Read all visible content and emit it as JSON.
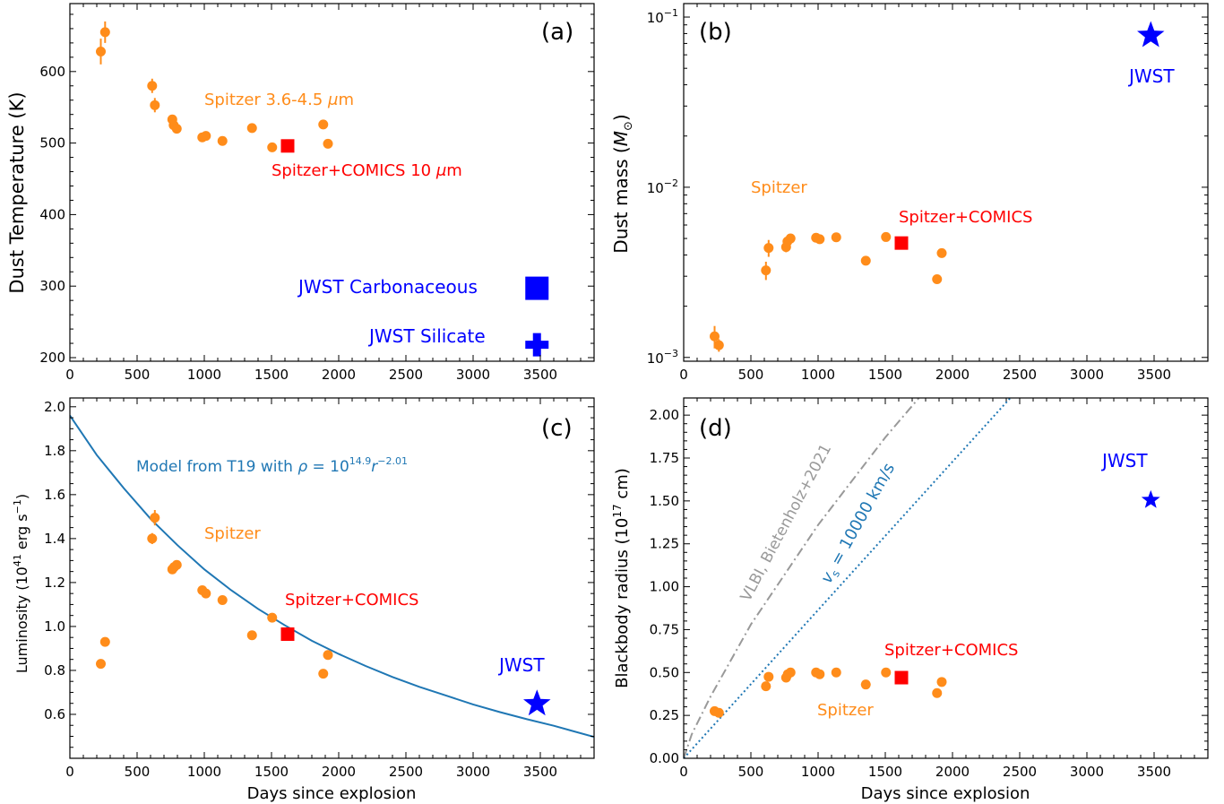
{
  "figure": {
    "xlabel_bottom": "Days since explosion"
  },
  "colors": {
    "spitzer": "#ff8c1a",
    "comics": "#ff0000",
    "jwst": "#0000ff",
    "model": "#1f77b4",
    "vlbi": "#999999",
    "axis": "#000000"
  },
  "chart_data": [
    {
      "panel": "(a)",
      "type": "scatter",
      "xlabel": "",
      "ylabel": "Dust Temperature (K)",
      "xlim": [
        0,
        3900
      ],
      "ylim": [
        195,
        695
      ],
      "xticks": [
        0,
        500,
        1000,
        1500,
        2000,
        2500,
        3000,
        3500
      ],
      "yticks": [
        200,
        300,
        400,
        500,
        600
      ],
      "yscale": "linear",
      "series": [
        {
          "name": "Spitzer 3.6-4.5 μm",
          "marker": "circle",
          "color": "#ff8c1a",
          "points": [
            {
              "x": 230,
              "y": 628,
              "err": 18
            },
            {
              "x": 262,
              "y": 655,
              "err": 15
            },
            {
              "x": 612,
              "y": 580,
              "err": 10
            },
            {
              "x": 632,
              "y": 553,
              "err": 10
            },
            {
              "x": 762,
              "y": 533,
              "err": 0
            },
            {
              "x": 772,
              "y": 525,
              "err": 0
            },
            {
              "x": 795,
              "y": 520,
              "err": 0
            },
            {
              "x": 985,
              "y": 508,
              "err": 0
            },
            {
              "x": 1012,
              "y": 510,
              "err": 0
            },
            {
              "x": 1135,
              "y": 503,
              "err": 0
            },
            {
              "x": 1355,
              "y": 521,
              "err": 0
            },
            {
              "x": 1505,
              "y": 494,
              "err": 0
            },
            {
              "x": 1885,
              "y": 526,
              "err": 0
            },
            {
              "x": 1920,
              "y": 499,
              "err": 0
            }
          ]
        },
        {
          "name": "Spitzer+COMICS 10 μm",
          "marker": "square",
          "color": "#ff0000",
          "points": [
            {
              "x": 1620,
              "y": 496
            }
          ]
        },
        {
          "name": "JWST Carbonaceous",
          "marker": "square",
          "color": "#0000ff",
          "points": [
            {
              "x": 3475,
              "y": 297
            }
          ]
        },
        {
          "name": "JWST Silicate",
          "marker": "plus",
          "color": "#0000ff",
          "points": [
            {
              "x": 3475,
              "y": 218
            }
          ]
        }
      ],
      "annotations": [
        {
          "text": "Spitzer 3.6-4.5 μm",
          "color": "#ff8c1a"
        },
        {
          "text": "Spitzer+COMICS 10 μm",
          "color": "#ff0000"
        },
        {
          "text": "JWST Carbonaceous",
          "color": "#0000ff"
        },
        {
          "text": "JWST Silicate",
          "color": "#0000ff"
        }
      ]
    },
    {
      "panel": "(b)",
      "type": "scatter",
      "xlabel": "",
      "ylabel": "Dust mass (M☉)",
      "xlim": [
        0,
        3900
      ],
      "ylim": [
        0.00095,
        0.12
      ],
      "yscale": "log",
      "xticks": [
        0,
        500,
        1000,
        1500,
        2000,
        2500,
        3000,
        3500
      ],
      "yticks": [
        0.001,
        0.01,
        0.1
      ],
      "ytick_labels": [
        "10^-3",
        "10^-2",
        "10^-1"
      ],
      "series": [
        {
          "name": "Spitzer",
          "marker": "circle",
          "color": "#ff8c1a",
          "points": [
            {
              "x": 230,
              "y": 0.00133,
              "err": 0.0002
            },
            {
              "x": 262,
              "y": 0.00118,
              "err": 0.0001
            },
            {
              "x": 612,
              "y": 0.00325,
              "err": 0.0004
            },
            {
              "x": 632,
              "y": 0.0044,
              "err": 0.0005
            },
            {
              "x": 762,
              "y": 0.00445,
              "err": 0.0003
            },
            {
              "x": 772,
              "y": 0.0048,
              "err": 0
            },
            {
              "x": 795,
              "y": 0.005,
              "err": 0
            },
            {
              "x": 985,
              "y": 0.00505,
              "err": 0
            },
            {
              "x": 1012,
              "y": 0.00495,
              "err": 0
            },
            {
              "x": 1135,
              "y": 0.00508,
              "err": 0
            },
            {
              "x": 1355,
              "y": 0.0037,
              "err": 0
            },
            {
              "x": 1505,
              "y": 0.0051,
              "err": 0
            },
            {
              "x": 1885,
              "y": 0.00288,
              "err": 0
            },
            {
              "x": 1920,
              "y": 0.0041,
              "err": 0
            }
          ]
        },
        {
          "name": "Spitzer+COMICS",
          "marker": "square",
          "color": "#ff0000",
          "points": [
            {
              "x": 1620,
              "y": 0.0047
            }
          ]
        },
        {
          "name": "JWST",
          "marker": "star",
          "color": "#0000ff",
          "points": [
            {
              "x": 3475,
              "y": 0.078
            }
          ]
        }
      ],
      "annotations": [
        {
          "text": "Spitzer",
          "color": "#ff8c1a"
        },
        {
          "text": "Spitzer+COMICS",
          "color": "#ff0000"
        },
        {
          "text": "JWST",
          "color": "#0000ff"
        }
      ]
    },
    {
      "panel": "(c)",
      "type": "scatter",
      "xlabel": "Days since explosion",
      "ylabel": "Luminosity (10^41 erg s^-1)",
      "xlim": [
        0,
        3900
      ],
      "ylim": [
        0.4,
        2.04
      ],
      "yscale": "linear",
      "xticks": [
        0,
        500,
        1000,
        1500,
        2000,
        2500,
        3000,
        3500
      ],
      "yticks": [
        0.6,
        0.8,
        1.0,
        1.2,
        1.4,
        1.6,
        1.8,
        2.0
      ],
      "series": [
        {
          "name": "Spitzer",
          "marker": "circle",
          "color": "#ff8c1a",
          "points": [
            {
              "x": 230,
              "y": 0.83,
              "err": 0
            },
            {
              "x": 262,
              "y": 0.93,
              "err": 0
            },
            {
              "x": 612,
              "y": 1.4,
              "err": 0.025
            },
            {
              "x": 632,
              "y": 1.495,
              "err": 0.035
            },
            {
              "x": 762,
              "y": 1.26,
              "err": 0.015
            },
            {
              "x": 775,
              "y": 1.27,
              "err": 0
            },
            {
              "x": 795,
              "y": 1.28,
              "err": 0
            },
            {
              "x": 985,
              "y": 1.165,
              "err": 0
            },
            {
              "x": 1012,
              "y": 1.15,
              "err": 0
            },
            {
              "x": 1135,
              "y": 1.12,
              "err": 0
            },
            {
              "x": 1355,
              "y": 0.96,
              "err": 0
            },
            {
              "x": 1505,
              "y": 1.04,
              "err": 0
            },
            {
              "x": 1885,
              "y": 0.785,
              "err": 0
            },
            {
              "x": 1920,
              "y": 0.87,
              "err": 0
            }
          ]
        },
        {
          "name": "Spitzer+COMICS",
          "marker": "square",
          "color": "#ff0000",
          "points": [
            {
              "x": 1620,
              "y": 0.965
            }
          ]
        },
        {
          "name": "JWST",
          "marker": "star",
          "color": "#0000ff",
          "points": [
            {
              "x": 3475,
              "y": 0.648
            }
          ]
        },
        {
          "name": "Model from T19",
          "type": "line",
          "color": "#1f77b4",
          "points": [
            {
              "x": 0,
              "y": 1.96
            },
            {
              "x": 200,
              "y": 1.78
            },
            {
              "x": 400,
              "y": 1.63
            },
            {
              "x": 600,
              "y": 1.49
            },
            {
              "x": 800,
              "y": 1.37
            },
            {
              "x": 1000,
              "y": 1.26
            },
            {
              "x": 1200,
              "y": 1.165
            },
            {
              "x": 1400,
              "y": 1.08
            },
            {
              "x": 1600,
              "y": 1.005
            },
            {
              "x": 1800,
              "y": 0.935
            },
            {
              "x": 2000,
              "y": 0.875
            },
            {
              "x": 2200,
              "y": 0.82
            },
            {
              "x": 2400,
              "y": 0.77
            },
            {
              "x": 2600,
              "y": 0.725
            },
            {
              "x": 2800,
              "y": 0.685
            },
            {
              "x": 3000,
              "y": 0.645
            },
            {
              "x": 3200,
              "y": 0.61
            },
            {
              "x": 3400,
              "y": 0.578
            },
            {
              "x": 3600,
              "y": 0.548
            },
            {
              "x": 3900,
              "y": 0.497
            }
          ]
        }
      ],
      "annotations": [
        {
          "text": "Spitzer",
          "color": "#ff8c1a"
        },
        {
          "text": "Spitzer+COMICS",
          "color": "#ff0000"
        },
        {
          "text": "JWST",
          "color": "#0000ff"
        },
        {
          "text": "Model from T19 with ρ = 10^14.9 r^-2.01",
          "color": "#1f77b4"
        }
      ],
      "model_label": {
        "prefix": "Model from T19 with ",
        "rho": "ρ",
        "eq": " = 10",
        "exp1": "14.9",
        "r": "r",
        "exp2": "−2.01"
      }
    },
    {
      "panel": "(d)",
      "type": "scatter",
      "xlabel": "Days since explosion",
      "ylabel": "Blackbody radius (10^17 cm)",
      "xlim": [
        0,
        3900
      ],
      "ylim": [
        0,
        2.1
      ],
      "yscale": "linear",
      "xticks": [
        0,
        500,
        1000,
        1500,
        2000,
        2500,
        3000,
        3500
      ],
      "yticks": [
        0.0,
        0.25,
        0.5,
        0.75,
        1.0,
        1.25,
        1.5,
        1.75,
        2.0
      ],
      "series": [
        {
          "name": "Spitzer",
          "marker": "circle",
          "color": "#ff8c1a",
          "points": [
            {
              "x": 230,
              "y": 0.275
            },
            {
              "x": 262,
              "y": 0.265
            },
            {
              "x": 612,
              "y": 0.42
            },
            {
              "x": 632,
              "y": 0.475
            },
            {
              "x": 762,
              "y": 0.47
            },
            {
              "x": 775,
              "y": 0.49
            },
            {
              "x": 795,
              "y": 0.5
            },
            {
              "x": 985,
              "y": 0.5
            },
            {
              "x": 1012,
              "y": 0.49
            },
            {
              "x": 1135,
              "y": 0.5
            },
            {
              "x": 1355,
              "y": 0.43
            },
            {
              "x": 1505,
              "y": 0.5
            },
            {
              "x": 1885,
              "y": 0.38
            },
            {
              "x": 1920,
              "y": 0.445
            }
          ]
        },
        {
          "name": "Spitzer+COMICS",
          "marker": "square",
          "color": "#ff0000",
          "points": [
            {
              "x": 1620,
              "y": 0.47
            }
          ]
        },
        {
          "name": "JWST",
          "marker": "star",
          "color": "#0000ff",
          "points": [
            {
              "x": 3475,
              "y": 1.505
            }
          ]
        },
        {
          "name": "VLBI, Bietenholz+2021",
          "type": "line",
          "style": "dashdot",
          "color": "#999999",
          "points": [
            {
              "x": 0,
              "y": 0.0
            },
            {
              "x": 60,
              "y": 0.14
            },
            {
              "x": 200,
              "y": 0.36
            },
            {
              "x": 500,
              "y": 0.78
            },
            {
              "x": 1000,
              "y": 1.36
            },
            {
              "x": 1500,
              "y": 1.87
            },
            {
              "x": 1750,
              "y": 2.1
            }
          ]
        },
        {
          "name": "v_s = 10000 km/s",
          "type": "line",
          "style": "dotted",
          "color": "#1f77b4",
          "points": [
            {
              "x": 0,
              "y": 0.0
            },
            {
              "x": 2450,
              "y": 2.117
            }
          ]
        }
      ],
      "annotations": [
        {
          "text": "Spitzer",
          "color": "#ff8c1a"
        },
        {
          "text": "Spitzer+COMICS",
          "color": "#ff0000"
        },
        {
          "text": "JWST",
          "color": "#0000ff"
        },
        {
          "text": "VLBI, Bietenholz+2021",
          "color": "#999999"
        },
        {
          "text": "v_s = 10000 km/s",
          "color": "#1f77b4"
        }
      ]
    }
  ],
  "labels": {
    "a": {
      "panel": "(a)",
      "ylabel": "Dust Temperature (K)",
      "spitzer_prefix": "Spitzer 3.6-4.5 ",
      "mu": "μ",
      "unit": "m",
      "comics_prefix": "Spitzer+COMICS 10 ",
      "jwst_carb": "JWST Carbonaceous",
      "jwst_sil": "JWST Silicate"
    },
    "b": {
      "panel": "(b)",
      "ylabel_prefix": "Dust mass (",
      "ylabel_M": "M",
      "ylabel_sun": "⊙",
      "ylabel_suffix": ")",
      "spitzer": "Spitzer",
      "comics": "Spitzer+COMICS",
      "jwst": "JWST",
      "tick_base": "10",
      "tick_exps": [
        "−3",
        "−2",
        "−1"
      ]
    },
    "c": {
      "panel": "(c)",
      "ylabel_prefix": "Luminosity (10",
      "ylabel_exp": "41",
      "ylabel_mid": " erg s",
      "ylabel_exp2": "−1",
      "ylabel_suffix": ")",
      "spitzer": "Spitzer",
      "comics": "Spitzer+COMICS",
      "jwst": "JWST"
    },
    "d": {
      "panel": "(d)",
      "ylabel_prefix": "Blackbody radius (10",
      "ylabel_exp": "17",
      "ylabel_suffix": " cm)",
      "spitzer": "Spitzer",
      "comics": "Spitzer+COMICS",
      "jwst": "JWST",
      "vlbi": "VLBI, Bietenholz+2021",
      "vs_v": "v",
      "vs_sub": "s",
      "vs_rest": " = 10000 km/s"
    }
  }
}
